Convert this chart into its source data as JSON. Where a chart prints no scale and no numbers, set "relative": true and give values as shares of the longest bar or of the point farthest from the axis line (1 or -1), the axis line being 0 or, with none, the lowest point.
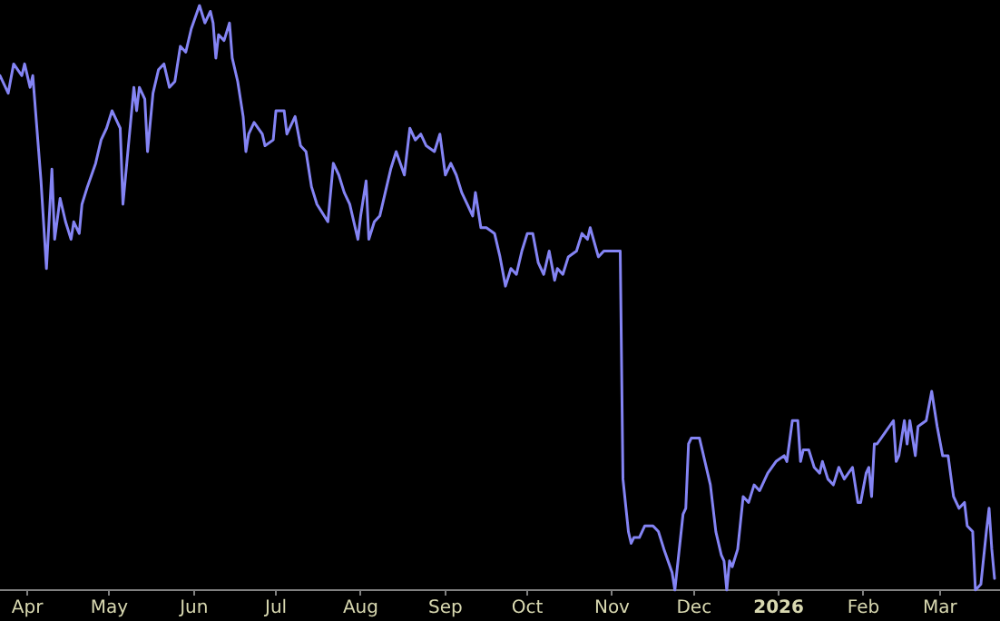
{
  "chart_data": {
    "type": "line",
    "relative": true,
    "marker": "none",
    "line_style": "solid",
    "xlim": [
      "2025-03-22",
      "2026-03-23"
    ],
    "xticks": [
      {
        "value": "2025-04-01",
        "label": "Apr"
      },
      {
        "value": "2025-05-01",
        "label": "May"
      },
      {
        "value": "2025-06-01",
        "label": "Jun"
      },
      {
        "value": "2025-07-01",
        "label": "Jul"
      },
      {
        "value": "2025-08-01",
        "label": "Aug"
      },
      {
        "value": "2025-09-01",
        "label": "Sep"
      },
      {
        "value": "2025-10-01",
        "label": "Oct"
      },
      {
        "value": "2025-11-01",
        "label": "Nov"
      },
      {
        "value": "2025-12-01",
        "label": "Dec"
      },
      {
        "value": "2026-01-01",
        "label": "2026"
      },
      {
        "value": "2026-02-01",
        "label": "Feb"
      },
      {
        "value": "2026-03-01",
        "label": "Mar"
      }
    ],
    "x": [
      "2025-03-22",
      "2025-03-25",
      "2025-03-27",
      "2025-03-30",
      "2025-03-31",
      "2025-04-02",
      "2025-04-03",
      "2025-04-06",
      "2025-04-08",
      "2025-04-10",
      "2025-04-11",
      "2025-04-13",
      "2025-04-15",
      "2025-04-17",
      "2025-04-18",
      "2025-04-20",
      "2025-04-21",
      "2025-04-23",
      "2025-04-26",
      "2025-04-28",
      "2025-04-30",
      "2025-05-02",
      "2025-05-04",
      "2025-05-05",
      "2025-05-06",
      "2025-05-10",
      "2025-05-11",
      "2025-05-12",
      "2025-05-14",
      "2025-05-15",
      "2025-05-17",
      "2025-05-19",
      "2025-05-21",
      "2025-05-23",
      "2025-05-25",
      "2025-05-27",
      "2025-05-29",
      "2025-05-31",
      "2025-06-03",
      "2025-06-05",
      "2025-06-07",
      "2025-06-08",
      "2025-06-09",
      "2025-06-10",
      "2025-06-12",
      "2025-06-14",
      "2025-06-15",
      "2025-06-17",
      "2025-06-19",
      "2025-06-20",
      "2025-06-21",
      "2025-06-23",
      "2025-06-26",
      "2025-06-27",
      "2025-06-30",
      "2025-07-01",
      "2025-07-04",
      "2025-07-05",
      "2025-07-08",
      "2025-07-10",
      "2025-07-12",
      "2025-07-14",
      "2025-07-16",
      "2025-07-20",
      "2025-07-22",
      "2025-07-24",
      "2025-07-26",
      "2025-07-28",
      "2025-07-31",
      "2025-08-01",
      "2025-08-03",
      "2025-08-04",
      "2025-08-06",
      "2025-08-08",
      "2025-08-10",
      "2025-08-12",
      "2025-08-14",
      "2025-08-17",
      "2025-08-19",
      "2025-08-21",
      "2025-08-23",
      "2025-08-25",
      "2025-08-28",
      "2025-08-30",
      "2025-09-01",
      "2025-09-03",
      "2025-09-05",
      "2025-09-07",
      "2025-09-09",
      "2025-09-11",
      "2025-09-12",
      "2025-09-14",
      "2025-09-16",
      "2025-09-19",
      "2025-09-21",
      "2025-09-23",
      "2025-09-25",
      "2025-09-27",
      "2025-09-29",
      "2025-10-01",
      "2025-10-03",
      "2025-10-05",
      "2025-10-07",
      "2025-10-09",
      "2025-10-11",
      "2025-10-12",
      "2025-10-14",
      "2025-10-16",
      "2025-10-19",
      "2025-10-21",
      "2025-10-23",
      "2025-10-24",
      "2025-10-27",
      "2025-10-29",
      "2025-11-04",
      "2025-11-05",
      "2025-11-07",
      "2025-11-08",
      "2025-11-09",
      "2025-11-11",
      "2025-11-13",
      "2025-11-16",
      "2025-11-18",
      "2025-11-20",
      "2025-11-23",
      "2025-11-24",
      "2025-11-27",
      "2025-11-28",
      "2025-11-29",
      "2025-11-30",
      "2025-12-03",
      "2025-12-04",
      "2025-12-07",
      "2025-12-09",
      "2025-12-11",
      "2025-12-12",
      "2025-12-13",
      "2025-12-14",
      "2025-12-15",
      "2025-12-17",
      "2025-12-19",
      "2025-12-21",
      "2025-12-23",
      "2025-12-25",
      "2025-12-26",
      "2025-12-28",
      "2025-12-31",
      "2026-01-03",
      "2026-01-04",
      "2026-01-06",
      "2026-01-08",
      "2026-01-09",
      "2026-01-10",
      "2026-01-12",
      "2026-01-14",
      "2026-01-16",
      "2026-01-17",
      "2026-01-19",
      "2026-01-21",
      "2026-01-23",
      "2026-01-25",
      "2026-01-28",
      "2026-01-30",
      "2026-01-31",
      "2026-02-02",
      "2026-02-03",
      "2026-02-04",
      "2026-02-05",
      "2026-02-06",
      "2026-02-09",
      "2026-02-12",
      "2026-02-13",
      "2026-02-14",
      "2026-02-16",
      "2026-02-17",
      "2026-02-18",
      "2026-02-20",
      "2026-02-21",
      "2026-02-24",
      "2026-02-26",
      "2026-02-28",
      "2026-03-02",
      "2026-03-04",
      "2026-03-06",
      "2026-03-08",
      "2026-03-10",
      "2026-03-11",
      "2026-03-13",
      "2026-03-14",
      "2026-03-16",
      "2026-03-18",
      "2026-03-19",
      "2026-03-20",
      "2026-03-21"
    ],
    "series": [
      {
        "color": "#8484f4",
        "values": [
          0.88,
          0.85,
          0.9,
          0.88,
          0.9,
          0.86,
          0.88,
          0.7,
          0.55,
          0.72,
          0.6,
          0.67,
          0.63,
          0.6,
          0.63,
          0.61,
          0.66,
          0.69,
          0.73,
          0.77,
          0.79,
          0.82,
          0.8,
          0.79,
          0.66,
          0.86,
          0.82,
          0.86,
          0.84,
          0.75,
          0.85,
          0.89,
          0.9,
          0.86,
          0.87,
          0.93,
          0.92,
          0.96,
          1.0,
          0.97,
          0.99,
          0.97,
          0.91,
          0.95,
          0.94,
          0.97,
          0.91,
          0.87,
          0.81,
          0.75,
          0.78,
          0.8,
          0.78,
          0.76,
          0.77,
          0.82,
          0.82,
          0.78,
          0.81,
          0.76,
          0.75,
          0.69,
          0.66,
          0.63,
          0.73,
          0.71,
          0.68,
          0.66,
          0.6,
          0.64,
          0.7,
          0.6,
          0.63,
          0.64,
          0.68,
          0.72,
          0.75,
          0.71,
          0.79,
          0.77,
          0.78,
          0.76,
          0.75,
          0.78,
          0.71,
          0.73,
          0.71,
          0.68,
          0.66,
          0.64,
          0.68,
          0.62,
          0.62,
          0.61,
          0.57,
          0.52,
          0.55,
          0.54,
          0.58,
          0.61,
          0.61,
          0.56,
          0.54,
          0.58,
          0.53,
          0.55,
          0.54,
          0.57,
          0.58,
          0.61,
          0.6,
          0.62,
          0.57,
          0.58,
          0.58,
          0.19,
          0.1,
          0.08,
          0.09,
          0.09,
          0.11,
          0.11,
          0.1,
          0.07,
          0.03,
          0.0,
          0.13,
          0.14,
          0.25,
          0.26,
          0.26,
          0.24,
          0.18,
          0.1,
          0.06,
          0.05,
          0.0,
          0.05,
          0.04,
          0.07,
          0.16,
          0.15,
          0.18,
          0.17,
          0.18,
          0.2,
          0.22,
          0.23,
          0.22,
          0.29,
          0.29,
          0.22,
          0.24,
          0.24,
          0.21,
          0.2,
          0.22,
          0.19,
          0.18,
          0.21,
          0.19,
          0.21,
          0.15,
          0.15,
          0.2,
          0.21,
          0.16,
          0.25,
          0.25,
          0.27,
          0.29,
          0.22,
          0.23,
          0.29,
          0.25,
          0.29,
          0.23,
          0.28,
          0.29,
          0.34,
          0.28,
          0.23,
          0.23,
          0.16,
          0.14,
          0.15,
          0.11,
          0.1,
          0.0,
          0.01,
          0.1,
          0.14,
          0.07,
          0.02
        ]
      }
    ]
  }
}
